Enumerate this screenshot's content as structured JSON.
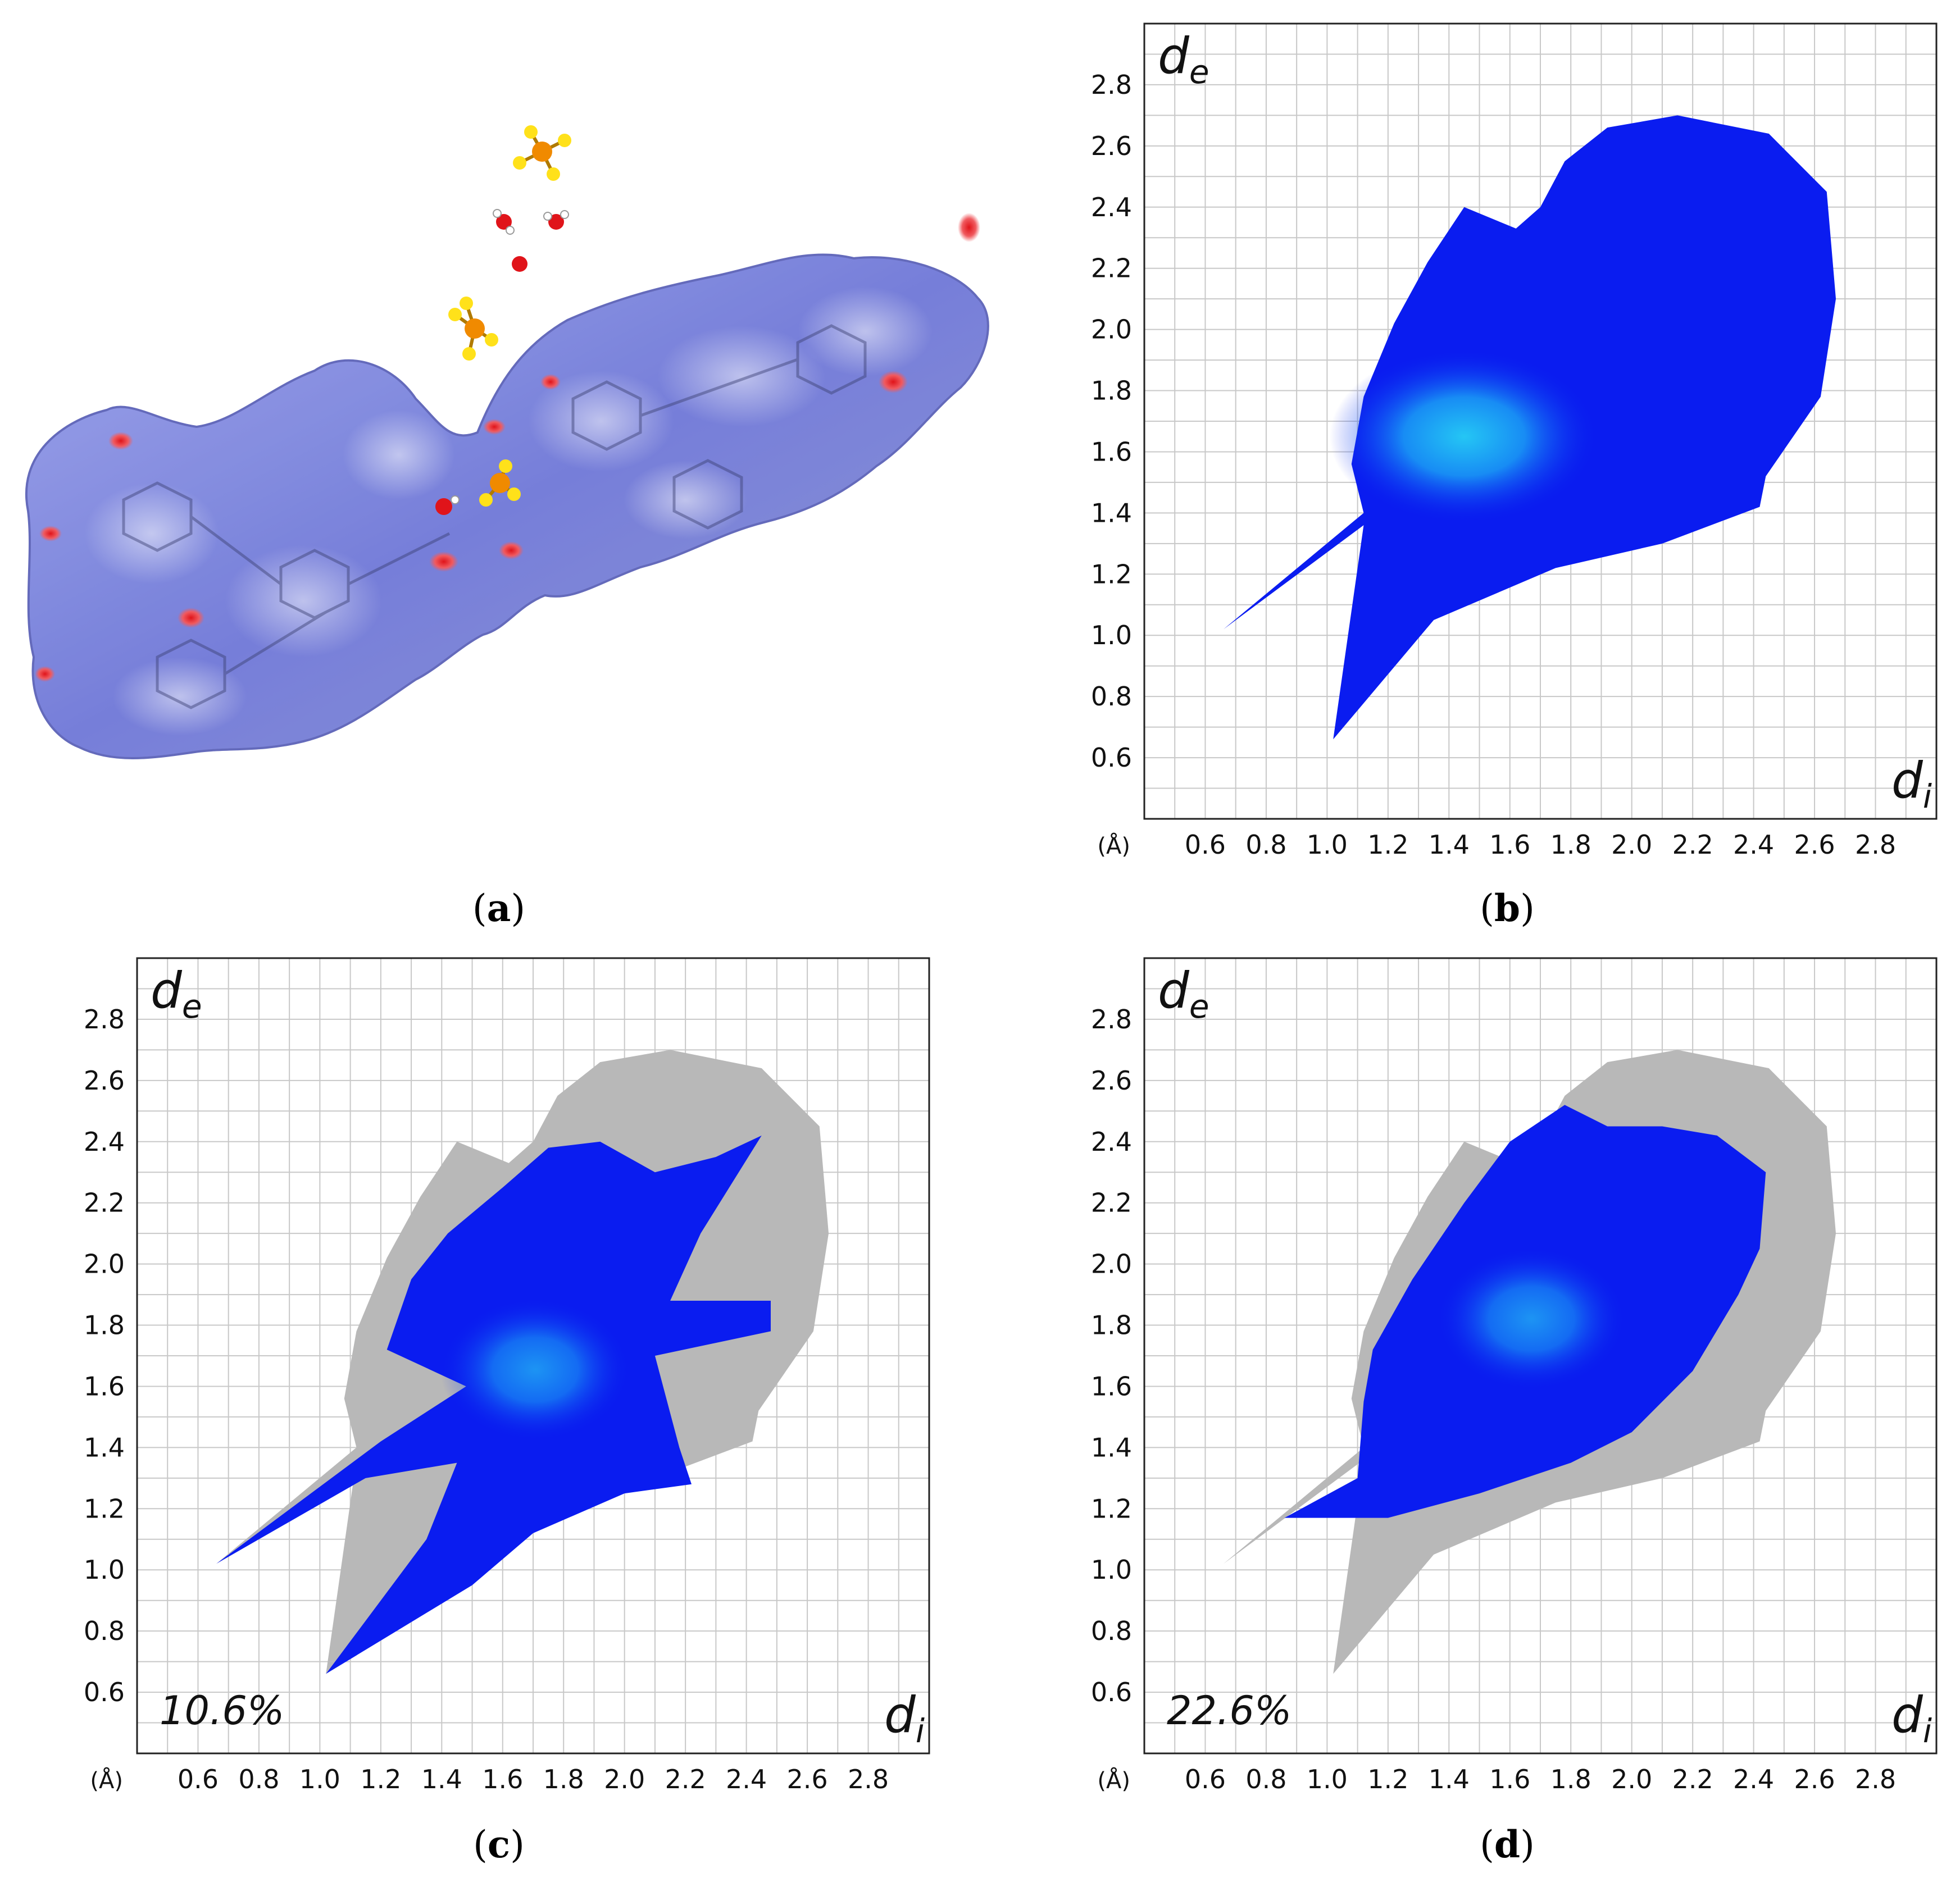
{
  "panels": {
    "a": {
      "label": "a"
    },
    "b": {
      "label": "b"
    },
    "c": {
      "label": "c"
    },
    "d": {
      "label": "d"
    }
  },
  "colors": {
    "surface_blue": "#6f78d8",
    "surface_white": "#f2f2f8",
    "hot_spot_red": "#e0141a",
    "fingerprint_blue": "#0a1cf0",
    "fingerprint_cyan": "#29e4f5",
    "background_grey": "#b8b8b8",
    "grid": "#c8c8c8",
    "fluorine": "#ffe11a",
    "phosphorus": "#f08a00",
    "oxygen": "#e0141a"
  },
  "chart_data": [
    {
      "panel": "b",
      "type": "heatmap",
      "description_of_marks": "full 2D Hirshfeld fingerprint",
      "xlabel_symbol": "d",
      "xlabel_subscript": "i",
      "ylabel_symbol": "d",
      "ylabel_subscript": "e",
      "unit_label": "(Å)",
      "xlim": [
        0.4,
        3.0
      ],
      "ylim": [
        0.4,
        3.0
      ],
      "x_ticks": [
        "0.6",
        "0.8",
        "1.0",
        "1.2",
        "1.4",
        "1.6",
        "1.8",
        "2.0",
        "2.2",
        "2.4",
        "2.6",
        "2.8"
      ],
      "y_ticks": [
        "0.6",
        "0.8",
        "1.0",
        "1.2",
        "1.4",
        "1.6",
        "1.8",
        "2.0",
        "2.2",
        "2.4",
        "2.6",
        "2.8"
      ],
      "grid": true,
      "percentage": null,
      "full_outline": [
        [
          0.66,
          1.02
        ],
        [
          1.12,
          1.36
        ],
        [
          1.02,
          0.66
        ],
        [
          1.35,
          1.05
        ],
        [
          1.75,
          1.22
        ],
        [
          2.1,
          1.3
        ],
        [
          2.42,
          1.42
        ],
        [
          2.44,
          1.52
        ],
        [
          2.62,
          1.78
        ],
        [
          2.67,
          2.1
        ],
        [
          2.64,
          2.45
        ],
        [
          2.45,
          2.64
        ],
        [
          2.15,
          2.7
        ],
        [
          1.92,
          2.66
        ],
        [
          1.78,
          2.55
        ],
        [
          1.7,
          2.4
        ],
        [
          1.62,
          2.33
        ],
        [
          1.45,
          2.4
        ],
        [
          1.33,
          2.22
        ],
        [
          1.22,
          2.02
        ],
        [
          1.12,
          1.78
        ],
        [
          1.08,
          1.56
        ],
        [
          1.12,
          1.4
        ],
        [
          0.66,
          1.02
        ]
      ],
      "cyan_center": [
        1.45,
        1.65
      ]
    },
    {
      "panel": "c",
      "type": "heatmap",
      "description_of_marks": "decomposed fingerprint, highlighted contacts over grey full plot",
      "xlabel_symbol": "d",
      "xlabel_subscript": "i",
      "ylabel_symbol": "d",
      "ylabel_subscript": "e",
      "unit_label": "(Å)",
      "xlim": [
        0.4,
        3.0
      ],
      "ylim": [
        0.4,
        3.0
      ],
      "x_ticks": [
        "0.6",
        "0.8",
        "1.0",
        "1.2",
        "1.4",
        "1.6",
        "1.8",
        "2.0",
        "2.2",
        "2.4",
        "2.6",
        "2.8"
      ],
      "y_ticks": [
        "0.6",
        "0.8",
        "1.0",
        "1.2",
        "1.4",
        "1.6",
        "1.8",
        "2.0",
        "2.2",
        "2.4",
        "2.6",
        "2.8"
      ],
      "grid": true,
      "percentage": "10.6%",
      "highlight_outline": [
        [
          0.66,
          1.02
        ],
        [
          1.2,
          1.42
        ],
        [
          1.48,
          1.6
        ],
        [
          1.22,
          1.72
        ],
        [
          1.3,
          1.95
        ],
        [
          1.42,
          2.1
        ],
        [
          1.6,
          2.25
        ],
        [
          1.75,
          2.38
        ],
        [
          1.92,
          2.4
        ],
        [
          2.1,
          2.3
        ],
        [
          2.3,
          2.35
        ],
        [
          2.45,
          2.42
        ],
        [
          2.25,
          2.1
        ],
        [
          2.15,
          1.88
        ],
        [
          2.48,
          1.88
        ],
        [
          2.48,
          1.78
        ],
        [
          2.1,
          1.7
        ],
        [
          2.18,
          1.4
        ],
        [
          2.22,
          1.28
        ],
        [
          2.0,
          1.25
        ],
        [
          1.7,
          1.12
        ],
        [
          1.5,
          0.95
        ],
        [
          1.02,
          0.66
        ],
        [
          1.35,
          1.1
        ],
        [
          1.45,
          1.35
        ],
        [
          1.15,
          1.3
        ],
        [
          0.66,
          1.02
        ]
      ]
    },
    {
      "panel": "d",
      "type": "heatmap",
      "description_of_marks": "decomposed fingerprint, highlighted contacts over grey full plot",
      "xlabel_symbol": "d",
      "xlabel_subscript": "i",
      "ylabel_symbol": "d",
      "ylabel_subscript": "e",
      "unit_label": "(Å)",
      "xlim": [
        0.4,
        3.0
      ],
      "ylim": [
        0.4,
        3.0
      ],
      "x_ticks": [
        "0.6",
        "0.8",
        "1.0",
        "1.2",
        "1.4",
        "1.6",
        "1.8",
        "2.0",
        "2.2",
        "2.4",
        "2.6",
        "2.8"
      ],
      "y_ticks": [
        "0.6",
        "0.8",
        "1.0",
        "1.2",
        "1.4",
        "1.6",
        "1.8",
        "2.0",
        "2.2",
        "2.4",
        "2.6",
        "2.8"
      ],
      "grid": true,
      "percentage": "22.6%",
      "highlight_outline": [
        [
          0.86,
          1.17
        ],
        [
          1.1,
          1.3
        ],
        [
          1.12,
          1.55
        ],
        [
          1.15,
          1.72
        ],
        [
          1.28,
          1.95
        ],
        [
          1.45,
          2.2
        ],
        [
          1.6,
          2.4
        ],
        [
          1.78,
          2.52
        ],
        [
          1.92,
          2.45
        ],
        [
          2.1,
          2.45
        ],
        [
          2.28,
          2.42
        ],
        [
          2.44,
          2.3
        ],
        [
          2.42,
          2.05
        ],
        [
          2.35,
          1.9
        ],
        [
          2.2,
          1.65
        ],
        [
          2.0,
          1.45
        ],
        [
          1.8,
          1.35
        ],
        [
          1.5,
          1.25
        ],
        [
          1.2,
          1.17
        ],
        [
          0.86,
          1.17
        ]
      ]
    }
  ]
}
